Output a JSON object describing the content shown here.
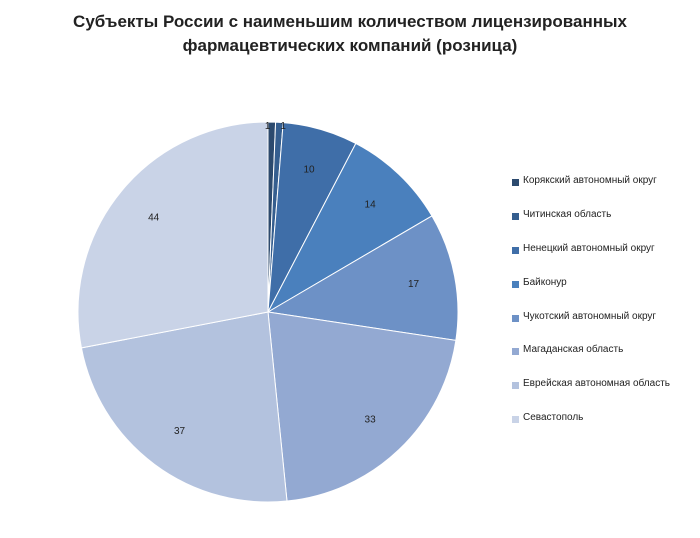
{
  "chart_data": {
    "type": "pie",
    "title_lines": [
      "Субъекты России с наименьшим количеством лицензированных",
      "фармацевтических компаний (розница)"
    ],
    "legend_position": "right",
    "start_angle_deg": 0,
    "direction": "clockwise",
    "slices": [
      {
        "label": "Корякский автономный округ",
        "value": 1,
        "color": "#2c4a6e"
      },
      {
        "label": "Читинская область",
        "value": 1,
        "color": "#355e8f"
      },
      {
        "label": "Ненецкий  автономный округ",
        "value": 10,
        "color": "#3f6ea8"
      },
      {
        "label": "Байконур",
        "value": 14,
        "color": "#4a80bd"
      },
      {
        "label": "Чукотский автономный округ",
        "value": 17,
        "color": "#6d91c6"
      },
      {
        "label": "Магаданская область",
        "value": 33,
        "color": "#93a9d2"
      },
      {
        "label": "Еврейская автономная область",
        "value": 37,
        "color": "#b3c2de"
      },
      {
        "label": "Севастополь",
        "value": 44,
        "color": "#c9d3e7"
      }
    ]
  }
}
